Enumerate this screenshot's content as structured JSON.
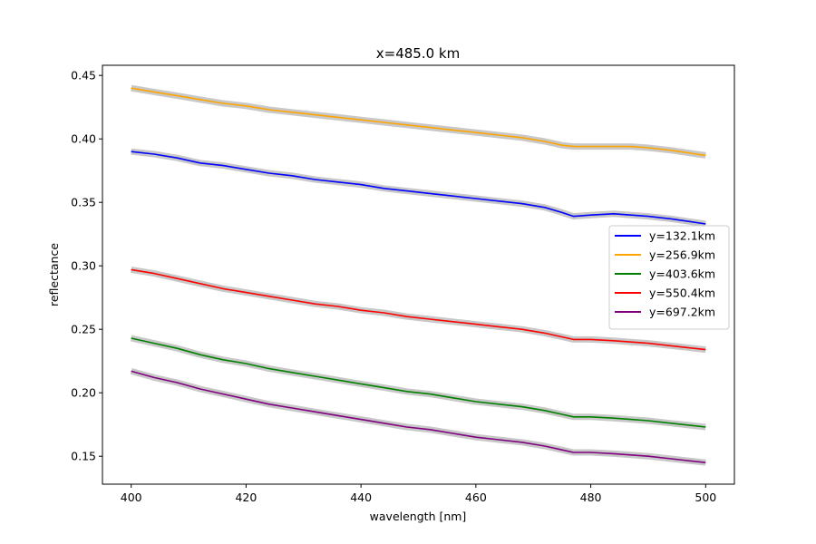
{
  "chart_data": {
    "type": "line",
    "title": "x=485.0 km",
    "xlabel": "wavelength [nm]",
    "ylabel": "reflectance",
    "xlim": [
      395,
      505
    ],
    "ylim": [
      0.128,
      0.458
    ],
    "xticks": [
      400,
      420,
      440,
      460,
      480,
      500
    ],
    "xtick_labels": [
      "400",
      "420",
      "440",
      "460",
      "480",
      "500"
    ],
    "yticks": [
      0.15,
      0.2,
      0.25,
      0.3,
      0.35,
      0.4,
      0.45
    ],
    "ytick_labels": [
      "0.15",
      "0.20",
      "0.25",
      "0.30",
      "0.35",
      "0.40",
      "0.45"
    ],
    "grid": false,
    "legend_position": "center-right",
    "band_color": "#c8c8c8",
    "x": [
      400,
      404,
      408,
      412,
      416,
      420,
      424,
      428,
      432,
      436,
      440,
      444,
      448,
      452,
      456,
      460,
      464,
      468,
      472,
      475,
      477,
      480,
      484,
      487,
      490,
      494,
      500
    ],
    "series": [
      {
        "name": "y=132.1km",
        "color": "#0000ff",
        "values": [
          0.39,
          0.388,
          0.385,
          0.381,
          0.379,
          0.376,
          0.373,
          0.371,
          0.368,
          0.366,
          0.364,
          0.361,
          0.359,
          0.357,
          0.355,
          0.353,
          0.351,
          0.349,
          0.346,
          0.342,
          0.339,
          0.34,
          0.341,
          0.34,
          0.339,
          0.337,
          0.333
        ]
      },
      {
        "name": "y=256.9km",
        "color": "#ffa500",
        "values": [
          0.44,
          0.437,
          0.434,
          0.431,
          0.428,
          0.426,
          0.423,
          0.421,
          0.419,
          0.417,
          0.415,
          0.413,
          0.411,
          0.409,
          0.407,
          0.405,
          0.403,
          0.401,
          0.398,
          0.395,
          0.394,
          0.394,
          0.394,
          0.394,
          0.393,
          0.391,
          0.387
        ]
      },
      {
        "name": "y=403.6km",
        "color": "#008000",
        "values": [
          0.243,
          0.239,
          0.235,
          0.23,
          0.226,
          0.223,
          0.219,
          0.216,
          0.213,
          0.21,
          0.207,
          0.204,
          0.201,
          0.199,
          0.196,
          0.193,
          0.191,
          0.189,
          0.186,
          0.183,
          0.181,
          0.181,
          0.18,
          0.179,
          0.178,
          0.176,
          0.173
        ]
      },
      {
        "name": "y=550.4km",
        "color": "#ff0000",
        "values": [
          0.297,
          0.294,
          0.29,
          0.286,
          0.282,
          0.279,
          0.276,
          0.273,
          0.27,
          0.268,
          0.265,
          0.263,
          0.26,
          0.258,
          0.256,
          0.254,
          0.252,
          0.25,
          0.247,
          0.244,
          0.242,
          0.242,
          0.241,
          0.24,
          0.239,
          0.237,
          0.234
        ]
      },
      {
        "name": "y=697.2km",
        "color": "#800080",
        "values": [
          0.217,
          0.212,
          0.208,
          0.203,
          0.199,
          0.195,
          0.191,
          0.188,
          0.185,
          0.182,
          0.179,
          0.176,
          0.173,
          0.171,
          0.168,
          0.165,
          0.163,
          0.161,
          0.158,
          0.155,
          0.153,
          0.153,
          0.152,
          0.151,
          0.15,
          0.148,
          0.145
        ]
      }
    ]
  }
}
